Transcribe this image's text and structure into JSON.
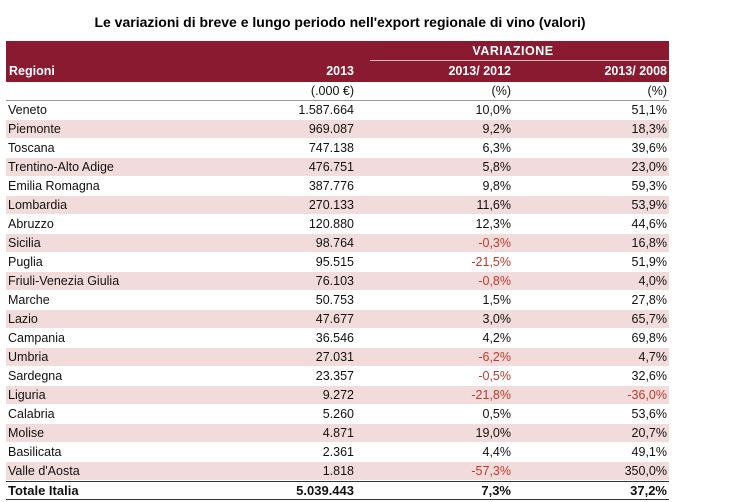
{
  "title": "Le variazioni di breve e lungo periodo nell'export regionale di vino (valori)",
  "colors": {
    "header_bg": "#8a1a30",
    "alt_row": "#f2dcdb",
    "negative": "#c0392b"
  },
  "header": {
    "group_label": "VARIAZIONE",
    "col_region": "Regioni",
    "col_value": "2013",
    "col_var_short": "2013/ 2012",
    "col_var_long": "2013/ 2008"
  },
  "units": {
    "value": "(.000 €)",
    "var_short": "(%)",
    "var_long": "(%)"
  },
  "rows": [
    {
      "region": "Veneto",
      "value": "1.587.664",
      "var_short": "10,0%",
      "var_long": "51,1%"
    },
    {
      "region": "Piemonte",
      "value": "969.087",
      "var_short": "9,2%",
      "var_long": "18,3%"
    },
    {
      "region": "Toscana",
      "value": "747.138",
      "var_short": "6,3%",
      "var_long": "39,6%"
    },
    {
      "region": "Trentino-Alto Adige",
      "value": "476.751",
      "var_short": "5,8%",
      "var_long": "23,0%"
    },
    {
      "region": "Emilia Romagna",
      "value": "387.776",
      "var_short": "9,8%",
      "var_long": "59,3%"
    },
    {
      "region": "Lombardia",
      "value": "270.133",
      "var_short": "11,6%",
      "var_long": "53,9%"
    },
    {
      "region": "Abruzzo",
      "value": "120.880",
      "var_short": "12,3%",
      "var_long": "44,6%"
    },
    {
      "region": "Sicilia",
      "value": "98.764",
      "var_short": "-0,3%",
      "var_long": "16,8%"
    },
    {
      "region": "Puglia",
      "value": "95.515",
      "var_short": "-21,5%",
      "var_long": "51,9%"
    },
    {
      "region": "Friuli-Venezia Giulia",
      "value": "76.103",
      "var_short": "-0,8%",
      "var_long": "4,0%"
    },
    {
      "region": "Marche",
      "value": "50.753",
      "var_short": "1,5%",
      "var_long": "27,8%"
    },
    {
      "region": "Lazio",
      "value": "47.677",
      "var_short": "3,0%",
      "var_long": "65,7%"
    },
    {
      "region": "Campania",
      "value": "36.546",
      "var_short": "4,2%",
      "var_long": "69,8%"
    },
    {
      "region": "Umbria",
      "value": "27.031",
      "var_short": "-6,2%",
      "var_long": "4,7%"
    },
    {
      "region": "Sardegna",
      "value": "23.357",
      "var_short": "-0,5%",
      "var_long": "32,6%"
    },
    {
      "region": "Liguria",
      "value": "9.272",
      "var_short": "-21,8%",
      "var_long": "-36,0%"
    },
    {
      "region": "Calabria",
      "value": "5.260",
      "var_short": "0,5%",
      "var_long": "53,6%"
    },
    {
      "region": "Molise",
      "value": "4.871",
      "var_short": "19,0%",
      "var_long": "20,7%"
    },
    {
      "region": "Basilicata",
      "value": "2.361",
      "var_short": "4,4%",
      "var_long": "49,1%"
    },
    {
      "region": "Valle d'Aosta",
      "value": "1.818",
      "var_short": "-57,3%",
      "var_long": "350,0%"
    }
  ],
  "total": {
    "region": "Totale Italia",
    "value": "5.039.443",
    "var_short": "7,3%",
    "var_long": "37,2%"
  }
}
